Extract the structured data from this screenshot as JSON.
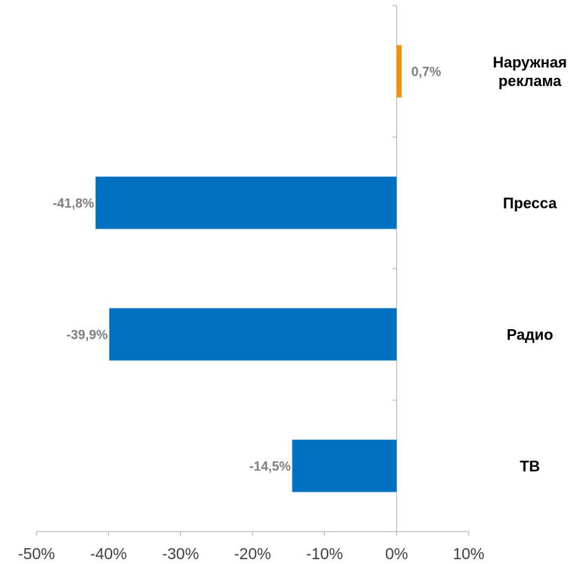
{
  "chart_data": {
    "type": "bar",
    "orientation": "horizontal",
    "categories": [
      [
        "Наружная",
        "реклама"
      ],
      [
        "Пресса"
      ],
      [
        "Радио"
      ],
      [
        "ТВ"
      ]
    ],
    "values": [
      0.7,
      -41.8,
      -39.9,
      -14.5
    ],
    "value_labels": [
      "0,7%",
      "-41,8%",
      "-39,9%",
      "-14,5%"
    ],
    "xlim": [
      -50,
      10
    ],
    "x_ticks": [
      -50,
      -40,
      -30,
      -20,
      -10,
      0,
      10
    ],
    "x_tick_labels": [
      "-50%",
      "-40%",
      "-30%",
      "-20%",
      "-10%",
      "0%",
      "10%"
    ],
    "title": "",
    "xlabel": "",
    "ylabel": "",
    "grid": false,
    "legend": "none",
    "colors": {
      "negative": "#0070C0",
      "positive": "#F39200",
      "axis": "#A6A6A6",
      "data_label": "#7F7F7F",
      "tick_label": "#404040",
      "category_label": "#000000"
    }
  }
}
